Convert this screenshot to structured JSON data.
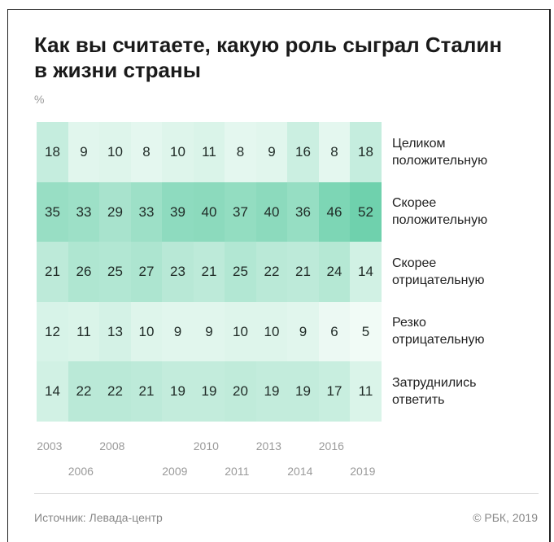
{
  "title": {
    "line1": "Как вы считаете, какую роль сыграл Сталин",
    "line2": "в жизни страны"
  },
  "unit": "%",
  "footer": {
    "source": "Источник: Левада-центр",
    "copyright": "© РБК, 2019"
  },
  "colors": {
    "text": "#1f2a26",
    "low": "#f1fbf6",
    "high": "#6fd1ad"
  },
  "chart_data": {
    "type": "heatmap",
    "title": "Как вы считаете, какую роль сыграл Сталин в жизни страны",
    "unit": "%",
    "years": [
      "2003",
      "2006",
      "2008",
      "2008",
      "2009",
      "2010",
      "2011",
      "2013",
      "2014",
      "2016",
      "2019"
    ],
    "year_label_rows": [
      [
        "2003",
        "",
        "2008",
        "",
        "",
        "2010",
        "",
        "2013",
        "",
        "2016",
        ""
      ],
      [
        "",
        "2006",
        "",
        "",
        "2009",
        "",
        "2011",
        "",
        "2014",
        "",
        "2019"
      ]
    ],
    "rows": [
      {
        "label_line1": "Целиком",
        "label_line2": "положительную",
        "values": [
          18,
          9,
          10,
          8,
          10,
          11,
          8,
          9,
          16,
          8,
          18
        ]
      },
      {
        "label_line1": "Скорее",
        "label_line2": "положительную",
        "values": [
          35,
          33,
          29,
          33,
          39,
          40,
          37,
          40,
          36,
          46,
          52
        ]
      },
      {
        "label_line1": "Скорее",
        "label_line2": "отрицательную",
        "values": [
          21,
          26,
          25,
          27,
          23,
          21,
          25,
          22,
          21,
          24,
          14
        ]
      },
      {
        "label_line1": "Резко",
        "label_line2": "отрицательную",
        "values": [
          12,
          11,
          13,
          10,
          9,
          9,
          10,
          10,
          9,
          6,
          5
        ]
      },
      {
        "label_line1": "Затруднились",
        "label_line2": "ответить",
        "values": [
          14,
          22,
          22,
          21,
          19,
          19,
          20,
          19,
          19,
          17,
          11
        ]
      }
    ]
  }
}
